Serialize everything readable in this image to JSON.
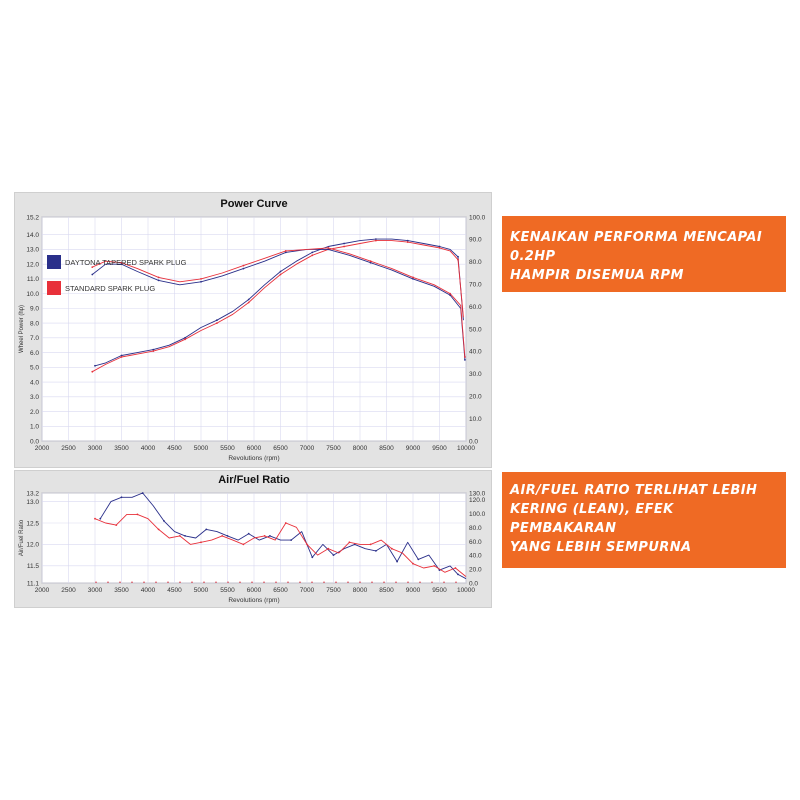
{
  "colors": {
    "daytona": "#2a2f8a",
    "standard": "#e8303a",
    "banner": "#ef6a24",
    "panel": "#e3e3e3",
    "plot": "#ffffff"
  },
  "banners": [
    {
      "lines": [
        "KENAIKAN PERFORMA MENCAPAI 0.2HP",
        "HAMPIR DISEMUA RPM"
      ]
    },
    {
      "lines": [
        "AIR/FUEL RATIO TERLIHAT LEBIH",
        "KERING (LEAN), EFEK PEMBAKARAN",
        "YANG LEBIH SEMPURNA"
      ]
    }
  ],
  "legend": [
    {
      "label": "DAYTONA TAPERED SPARK PLUG",
      "color": "#2a2f8a"
    },
    {
      "label": "STANDARD SPARK PLUG",
      "color": "#e8303a"
    }
  ],
  "chart_data": [
    {
      "type": "line",
      "title": "Power Curve",
      "xlabel": "Revolutions (rpm)",
      "ylabel": "Wheel Power (hp)",
      "y2label": "Torque (Nm)",
      "xlim": [
        2000,
        10000
      ],
      "ylim": [
        0.0,
        15.2
      ],
      "y2lim": [
        0.0,
        100.0
      ],
      "xticks": [
        "2000",
        "2500",
        "3000",
        "3500",
        "4000",
        "4500",
        "5000",
        "5500",
        "6000",
        "6500",
        "7000",
        "7500",
        "8000",
        "8500",
        "9000",
        "9500",
        "10000"
      ],
      "yticks": [
        "0.0",
        "1.0",
        "2.0",
        "3.0",
        "4.0",
        "5.0",
        "6.0",
        "7.0",
        "8.0",
        "9.0",
        "10.0",
        "11.0",
        "12.0",
        "13.0",
        "14.0",
        "15.2"
      ],
      "y2ticks": [
        "0.0",
        "10.0",
        "20.0",
        "30.0",
        "40.0",
        "50.0",
        "60.0",
        "70.0",
        "80.0",
        "90.0",
        "100.0"
      ],
      "grid": true,
      "series": [
        {
          "name": "DAYTONA TAPERED SPARK PLUG",
          "color": "#2a2f8a",
          "kind": "power",
          "x": [
            3000,
            3200,
            3500,
            3800,
            4100,
            4400,
            4700,
            5000,
            5300,
            5600,
            5900,
            6200,
            6500,
            6800,
            7100,
            7400,
            7700,
            8000,
            8300,
            8600,
            8900,
            9200,
            9500,
            9700,
            9850,
            9950
          ],
          "y": [
            5.1,
            5.3,
            5.8,
            6.0,
            6.2,
            6.5,
            7.0,
            7.7,
            8.2,
            8.8,
            9.6,
            10.6,
            11.5,
            12.2,
            12.8,
            13.2,
            13.4,
            13.6,
            13.7,
            13.7,
            13.6,
            13.4,
            13.2,
            13.0,
            12.5,
            8.2
          ]
        },
        {
          "name": "STANDARD SPARK PLUG",
          "color": "#e8303a",
          "kind": "power",
          "x": [
            2950,
            3200,
            3500,
            3800,
            4100,
            4400,
            4700,
            5000,
            5300,
            5600,
            5900,
            6200,
            6500,
            6800,
            7100,
            7400,
            7700,
            8000,
            8300,
            8600,
            8900,
            9200,
            9500,
            9700,
            9850,
            9950
          ],
          "y": [
            4.7,
            5.2,
            5.7,
            5.9,
            6.1,
            6.4,
            6.9,
            7.5,
            8.0,
            8.6,
            9.4,
            10.4,
            11.3,
            12.0,
            12.6,
            13.0,
            13.2,
            13.4,
            13.6,
            13.6,
            13.5,
            13.3,
            13.1,
            12.9,
            12.3,
            8.4
          ]
        },
        {
          "name": "DAYTONA TAPERED SPARK PLUG",
          "color": "#2a2f8a",
          "kind": "torque",
          "x": [
            2950,
            3200,
            3500,
            3800,
            4200,
            4600,
            5000,
            5400,
            5800,
            6200,
            6600,
            7000,
            7400,
            7800,
            8200,
            8600,
            9000,
            9400,
            9700,
            9900,
            9980
          ],
          "y": [
            11.3,
            12.0,
            12.0,
            11.5,
            10.9,
            10.6,
            10.8,
            11.2,
            11.7,
            12.2,
            12.8,
            13.0,
            13.0,
            12.6,
            12.1,
            11.6,
            11.0,
            10.5,
            9.9,
            9.0,
            5.5
          ]
        },
        {
          "name": "STANDARD SPARK PLUG",
          "color": "#e8303a",
          "kind": "torque",
          "x": [
            2950,
            3200,
            3500,
            3800,
            4200,
            4600,
            5000,
            5400,
            5800,
            6200,
            6600,
            7000,
            7400,
            7800,
            8200,
            8600,
            9000,
            9400,
            9700,
            9900,
            9980
          ],
          "y": [
            11.8,
            12.2,
            12.1,
            11.7,
            11.1,
            10.8,
            11.0,
            11.4,
            11.9,
            12.4,
            12.9,
            13.0,
            13.1,
            12.7,
            12.2,
            11.7,
            11.1,
            10.6,
            10.0,
            9.2,
            5.7
          ]
        }
      ]
    },
    {
      "type": "line",
      "title": "Air/Fuel Ratio",
      "xlabel": "Revolutions (rpm)",
      "ylabel": "Air/Fuel Ratio",
      "y2label": "Voltage (V)",
      "xlim": [
        2000,
        10000
      ],
      "ylim": [
        11.1,
        13.2
      ],
      "y2lim": [
        0.0,
        130.0
      ],
      "xticks": [
        "2000",
        "2500",
        "3000",
        "3500",
        "4000",
        "4500",
        "5000",
        "5500",
        "6000",
        "6500",
        "7000",
        "7500",
        "8000",
        "8500",
        "9000",
        "9500",
        "10000"
      ],
      "yticks": [
        {
          "label": "11.1",
          "v": 11.1
        },
        {
          "label": "11.5",
          "v": 11.5
        },
        {
          "label": "12.0",
          "v": 12.0
        },
        {
          "label": "12.5",
          "v": 12.5
        },
        {
          "label": "13.0",
          "v": 13.0
        },
        {
          "label": "13.2",
          "v": 13.2
        }
      ],
      "y2ticks": [
        "0.0",
        "20.0",
        "40.0",
        "60.0",
        "80.0",
        "100.0",
        "120.0",
        "130.0"
      ],
      "grid": true,
      "series": [
        {
          "name": "DAYTONA TAPERED SPARK PLUG",
          "color": "#2a2f8a",
          "x": [
            3100,
            3300,
            3500,
            3700,
            3900,
            4100,
            4300,
            4500,
            4700,
            4900,
            5100,
            5300,
            5500,
            5700,
            5900,
            6100,
            6300,
            6500,
            6700,
            6900,
            7100,
            7300,
            7500,
            7700,
            7900,
            8100,
            8300,
            8500,
            8700,
            8900,
            9100,
            9300,
            9500,
            9700,
            9850,
            10000
          ],
          "y": [
            12.6,
            13.0,
            13.1,
            13.1,
            13.2,
            12.9,
            12.55,
            12.3,
            12.2,
            12.15,
            12.35,
            12.3,
            12.2,
            12.1,
            12.25,
            12.1,
            12.2,
            12.1,
            12.1,
            12.3,
            11.7,
            12.0,
            11.75,
            11.9,
            12.0,
            11.9,
            11.85,
            12.0,
            11.6,
            12.05,
            11.65,
            11.75,
            11.4,
            11.5,
            11.3,
            11.2
          ]
        },
        {
          "name": "STANDARD SPARK PLUG",
          "color": "#e8303a",
          "x": [
            3000,
            3200,
            3400,
            3600,
            3800,
            4000,
            4200,
            4400,
            4600,
            4800,
            5000,
            5200,
            5400,
            5600,
            5800,
            6000,
            6200,
            6400,
            6600,
            6800,
            7000,
            7200,
            7400,
            7600,
            7800,
            8000,
            8200,
            8400,
            8600,
            8800,
            9000,
            9200,
            9400,
            9600,
            9800,
            10000
          ],
          "y": [
            12.6,
            12.5,
            12.45,
            12.7,
            12.7,
            12.6,
            12.35,
            12.15,
            12.2,
            12.0,
            12.05,
            12.1,
            12.2,
            12.1,
            12.0,
            12.15,
            12.2,
            12.1,
            12.5,
            12.4,
            12.0,
            11.75,
            11.9,
            11.8,
            12.05,
            12.0,
            12.0,
            12.1,
            11.9,
            11.8,
            11.55,
            11.45,
            11.5,
            11.35,
            11.45,
            11.25
          ]
        },
        {
          "name": "Voltage",
          "color": "#e8303a",
          "kind": "baseline",
          "x": [
            3000,
            10000
          ],
          "y": [
            11.12,
            11.12
          ]
        }
      ]
    }
  ]
}
